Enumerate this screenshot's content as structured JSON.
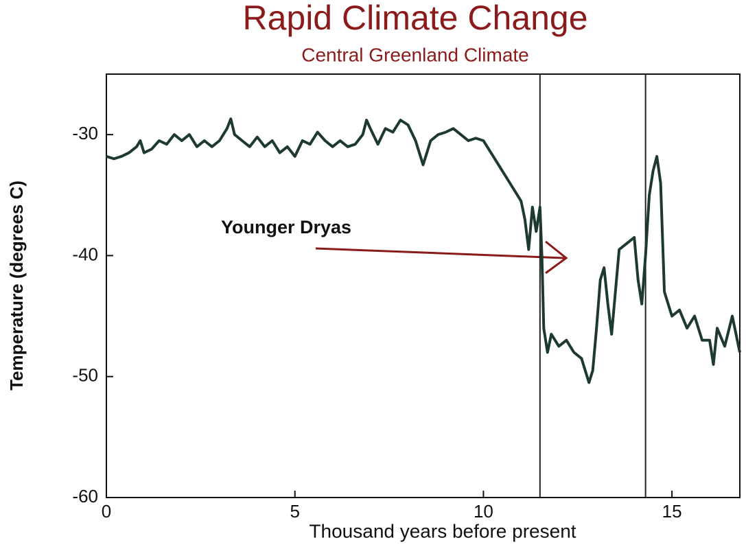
{
  "chart_data": {
    "type": "line",
    "title": "Rapid Climate Change",
    "subtitle": "Central Greenland Climate",
    "x_label": "Thousand years before present",
    "y_label": "Temperature (degrees C)",
    "annotation": "Younger Dryas",
    "xlim": [
      0,
      16.8
    ],
    "xticks": [
      0,
      5,
      10,
      15
    ],
    "ylim": [
      -60,
      -25
    ],
    "yticks": [
      -30,
      -40,
      -50,
      -60
    ],
    "vlines": [
      11.5,
      14.3
    ],
    "x": [
      0,
      0.2,
      0.4,
      0.6,
      0.8,
      0.9,
      1.0,
      1.2,
      1.4,
      1.6,
      1.8,
      2.0,
      2.2,
      2.4,
      2.6,
      2.8,
      3.0,
      3.2,
      3.3,
      3.4,
      3.6,
      3.8,
      4.0,
      4.2,
      4.4,
      4.6,
      4.8,
      5.0,
      5.2,
      5.4,
      5.6,
      5.8,
      6.0,
      6.2,
      6.4,
      6.6,
      6.8,
      6.9,
      7.0,
      7.2,
      7.4,
      7.6,
      7.8,
      8.0,
      8.2,
      8.4,
      8.6,
      8.8,
      9.0,
      9.2,
      9.4,
      9.6,
      9.8,
      10.0,
      10.2,
      10.4,
      10.6,
      10.8,
      11.0,
      11.1,
      11.2,
      11.3,
      11.4,
      11.5,
      11.55,
      11.6,
      11.7,
      11.8,
      12.0,
      12.2,
      12.4,
      12.6,
      12.8,
      12.9,
      13.0,
      13.1,
      13.2,
      13.3,
      13.4,
      13.5,
      13.6,
      13.8,
      14.0,
      14.1,
      14.2,
      14.3,
      14.4,
      14.5,
      14.6,
      14.7,
      14.8,
      15.0,
      15.2,
      15.4,
      15.6,
      15.8,
      16.0,
      16.1,
      16.2,
      16.4,
      16.6,
      16.8
    ],
    "series": [
      {
        "color": "#1e3a30",
        "values": [
          -31.8,
          -32,
          -31.8,
          -31.5,
          -31,
          -30.5,
          -31.5,
          -31.2,
          -30.5,
          -30.8,
          -30,
          -30.5,
          -30,
          -31,
          -30.5,
          -31,
          -30.5,
          -29.5,
          -28.7,
          -30,
          -30.5,
          -31,
          -30.2,
          -31,
          -30.5,
          -31.5,
          -31,
          -31.8,
          -30.5,
          -30.8,
          -29.8,
          -30.5,
          -31,
          -30.5,
          -31,
          -30.8,
          -30,
          -28.8,
          -29.5,
          -30.8,
          -29.5,
          -29.8,
          -28.8,
          -29.2,
          -30.5,
          -32.5,
          -30.5,
          -30,
          -29.8,
          -29.5,
          -30,
          -30.5,
          -30.3,
          -30.5,
          -31.5,
          -32.5,
          -33.5,
          -34.5,
          -35.5,
          -37,
          -39.5,
          -36,
          -38,
          -36,
          -40,
          -46,
          -48,
          -46.5,
          -47.5,
          -47,
          -48,
          -48.5,
          -50.5,
          -49.5,
          -46,
          -42,
          -41,
          -44,
          -46.5,
          -43,
          -39.5,
          -39,
          -38.5,
          -42,
          -44,
          -40,
          -35,
          -33,
          -31.8,
          -34,
          -43,
          -45,
          -44.5,
          -46,
          -45,
          -47,
          -47,
          -49,
          -46,
          -47.5,
          -45,
          -48
        ]
      }
    ]
  }
}
